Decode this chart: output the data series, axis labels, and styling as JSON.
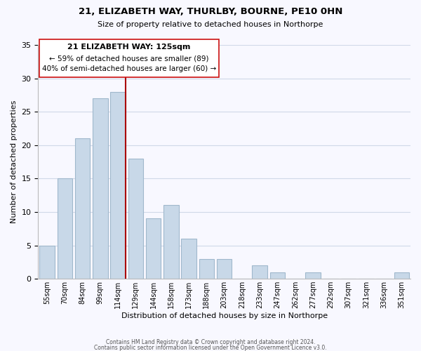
{
  "title": "21, ELIZABETH WAY, THURLBY, BOURNE, PE10 0HN",
  "subtitle": "Size of property relative to detached houses in Northorpe",
  "xlabel": "Distribution of detached houses by size in Northorpe",
  "ylabel": "Number of detached properties",
  "footer_line1": "Contains HM Land Registry data © Crown copyright and database right 2024.",
  "footer_line2": "Contains public sector information licensed under the Open Government Licence v3.0.",
  "bar_labels": [
    "55sqm",
    "70sqm",
    "84sqm",
    "99sqm",
    "114sqm",
    "129sqm",
    "144sqm",
    "158sqm",
    "173sqm",
    "188sqm",
    "203sqm",
    "218sqm",
    "233sqm",
    "247sqm",
    "262sqm",
    "277sqm",
    "292sqm",
    "307sqm",
    "321sqm",
    "336sqm",
    "351sqm"
  ],
  "bar_values": [
    5,
    15,
    21,
    27,
    28,
    18,
    9,
    11,
    6,
    3,
    3,
    0,
    2,
    1,
    0,
    1,
    0,
    0,
    0,
    0,
    1
  ],
  "bar_color": "#c8d8e8",
  "bar_edgecolor": "#a0b8cc",
  "highlight_bar_index": 4,
  "highlight_line_color": "#aa0000",
  "ylim": [
    0,
    35
  ],
  "yticks": [
    0,
    5,
    10,
    15,
    20,
    25,
    30,
    35
  ],
  "annotation_title": "21 ELIZABETH WAY: 125sqm",
  "annotation_line1": "← 59% of detached houses are smaller (89)",
  "annotation_line2": "40% of semi-detached houses are larger (60) →",
  "bg_color": "#f8f8ff",
  "grid_color": "#d0d8e8"
}
